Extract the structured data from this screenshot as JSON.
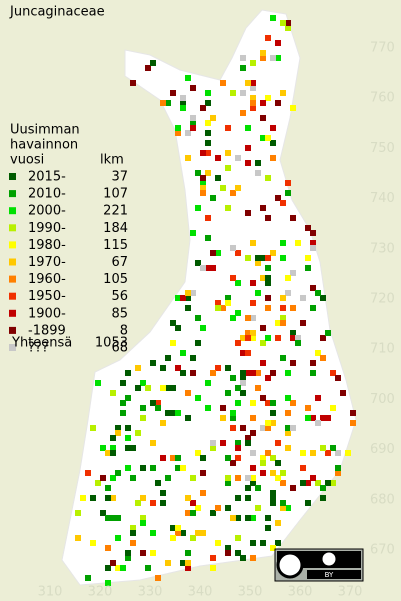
{
  "title": "Juncaginaceae",
  "legend": {
    "header": [
      "Uusimman",
      "havainnon",
      "vuosi"
    ],
    "count_header": "lkm",
    "rows": [
      {
        "label": "2015-",
        "count": 37,
        "color": "#005a00"
      },
      {
        "label": "2010-",
        "count": 107,
        "color": "#00a000"
      },
      {
        "label": "2000-",
        "count": 221,
        "color": "#00e000"
      },
      {
        "label": "1990-",
        "count": 184,
        "color": "#b8f000"
      },
      {
        "label": "1980-",
        "count": 115,
        "color": "#ffff00"
      },
      {
        "label": "1970-",
        "count": 67,
        "color": "#ffc800"
      },
      {
        "label": "1960-",
        "count": 105,
        "color": "#ff8000"
      },
      {
        "label": "1950-",
        "count": 56,
        "color": "#f03000"
      },
      {
        "label": "1900-",
        "count": 85,
        "color": "#c00000"
      },
      {
        "label": "-1899",
        "count": 8,
        "color": "#800000"
      },
      {
        "label": "???",
        "count": 68,
        "color": "#c8c8c8"
      }
    ],
    "total_label": "Yhteensä",
    "total": 1053
  },
  "x_labels": [
    310,
    320,
    330,
    340,
    350,
    360,
    370
  ],
  "y_labels": [
    770,
    760,
    750,
    740,
    730,
    720,
    710,
    700,
    690,
    680,
    670
  ],
  "license_label": "BY"
}
